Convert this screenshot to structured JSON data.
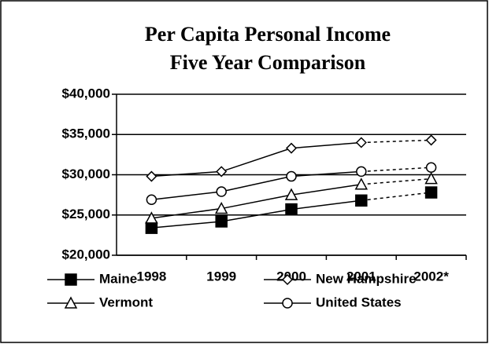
{
  "chart_data": {
    "type": "line",
    "title": [
      "Per Capita Personal Income",
      "Five Year Comparison"
    ],
    "categories": [
      "1998",
      "1999",
      "2000",
      "2001",
      "2002*"
    ],
    "series": [
      {
        "name": "Maine",
        "color": "#000000",
        "marker": "square",
        "values": [
          23400,
          24200,
          25700,
          26800,
          27800
        ]
      },
      {
        "name": "New Hampshire",
        "color": "#000000",
        "marker": "diamond",
        "values": [
          29800,
          30400,
          33300,
          34000,
          34300
        ]
      },
      {
        "name": "Vermont",
        "color": "#000000",
        "marker": "triangle",
        "values": [
          24600,
          25800,
          27500,
          28800,
          29500
        ]
      },
      {
        "name": "United States",
        "color": "#000000",
        "marker": "circle",
        "values": [
          26900,
          27900,
          29800,
          30400,
          30900
        ]
      }
    ],
    "ylim": [
      20000,
      40000
    ],
    "yticks": [
      {
        "value": 20000,
        "label": "$20,000"
      },
      {
        "value": 25000,
        "label": "$25,000"
      },
      {
        "value": 30000,
        "label": "$30,000"
      },
      {
        "value": 35000,
        "label": "$35,000"
      },
      {
        "value": 40000,
        "label": "$40,000"
      }
    ],
    "grid": true,
    "dashed_last_segment": true
  }
}
